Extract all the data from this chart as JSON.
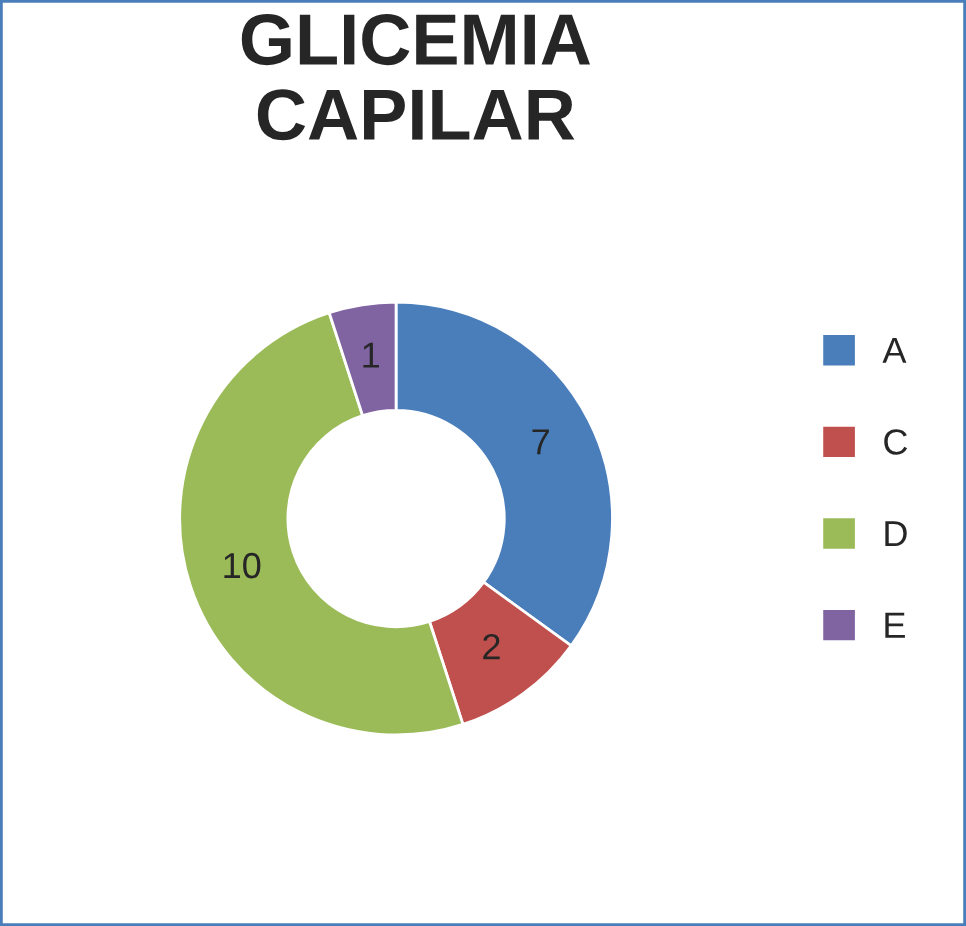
{
  "chart_data": {
    "type": "donut",
    "title": "GLICEMIA\nCAPILAR",
    "categories": [
      "A",
      "C",
      "D",
      "E"
    ],
    "values": [
      7,
      2,
      10,
      1
    ],
    "colors": [
      "#4a7ebb",
      "#c0504d",
      "#9bbb59",
      "#8064a2"
    ],
    "data_labels": true,
    "legend": "right"
  }
}
